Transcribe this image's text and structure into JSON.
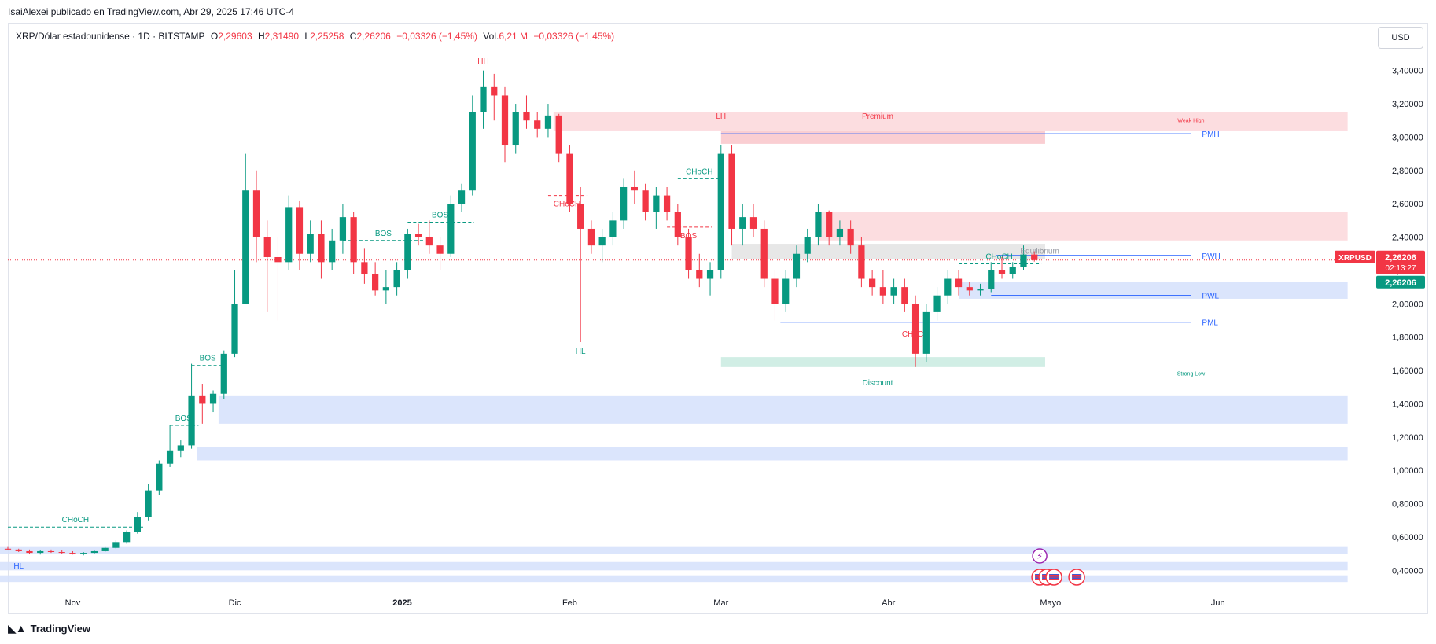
{
  "header": {
    "published_line": "IsaiAlexei publicado en TradingView.com, Abr 29, 2025 17:46 UTC-4"
  },
  "legend": {
    "symbol": "XRP/Dólar estadounidense · 1D · BITSTAMP",
    "o_label": "O",
    "o_value": "2,29603",
    "h_label": "H",
    "h_value": "2,31490",
    "l_label": "L",
    "l_value": "2,25258",
    "c_label": "C",
    "c_value": "2,26206",
    "change": "−0,03326 (−1,45%)",
    "vol_label": "Vol.",
    "vol_value": "6,21 M",
    "vol_change": "−0,03326 (−1,45%)"
  },
  "currency_button": "USD",
  "footer": {
    "brand": "TradingView",
    "logo_icon": "tradingview-logo-icon"
  },
  "colors": {
    "up": "#089981",
    "down": "#f23645",
    "blue": "#2962ff",
    "premium_zone": "#fbd7da",
    "discount_zone": "#c9ebe0",
    "blue_zone": "#d5e0fb",
    "equilibrium_zone": "#e3e3e3"
  },
  "price_badges": {
    "symbol_label": "XRPUSD",
    "last_price": "2,26206",
    "countdown": "02:13:27",
    "price_2": "2,26206"
  },
  "chart_data": {
    "type": "candlestick",
    "y_axis": {
      "range": [
        0.26,
        3.54
      ],
      "ticks": [
        "3,40000",
        "3,20000",
        "3,00000",
        "2,80000",
        "2,60000",
        "2,40000",
        "2,20000",
        "2,00000",
        "1,80000",
        "1,60000",
        "1,40000",
        "1,20000",
        "1,00000",
        "0,80000",
        "0,60000",
        "0,40000"
      ],
      "tick_values": [
        3.4,
        3.2,
        3.0,
        2.8,
        2.6,
        2.4,
        2.2,
        2.0,
        1.8,
        1.6,
        1.4,
        1.2,
        1.0,
        0.8,
        0.6,
        0.4
      ]
    },
    "x_axis": {
      "ticks": [
        "Nov",
        "Dic",
        "2025",
        "Feb",
        "Mar",
        "Abr",
        "Mayo",
        "Jun"
      ],
      "tick_dates": [
        "2024-11-01",
        "2024-12-01",
        "2025-01-01",
        "2025-02-01",
        "2025-03-01",
        "2025-04-01",
        "2025-05-01",
        "2025-06-01"
      ],
      "range": [
        "2024-10-20",
        "2025-06-30"
      ]
    },
    "candles": [
      {
        "d": "2024-10-20",
        "o": 0.53,
        "h": 0.54,
        "l": 0.52,
        "c": 0.525
      },
      {
        "d": "2024-10-22",
        "o": 0.525,
        "h": 0.53,
        "l": 0.51,
        "c": 0.515
      },
      {
        "d": "2024-10-24",
        "o": 0.515,
        "h": 0.525,
        "l": 0.5,
        "c": 0.505
      },
      {
        "d": "2024-10-26",
        "o": 0.505,
        "h": 0.52,
        "l": 0.495,
        "c": 0.515
      },
      {
        "d": "2024-10-28",
        "o": 0.515,
        "h": 0.525,
        "l": 0.505,
        "c": 0.51
      },
      {
        "d": "2024-10-30",
        "o": 0.51,
        "h": 0.52,
        "l": 0.5,
        "c": 0.505
      },
      {
        "d": "2024-11-01",
        "o": 0.505,
        "h": 0.515,
        "l": 0.495,
        "c": 0.5
      },
      {
        "d": "2024-11-03",
        "o": 0.5,
        "h": 0.51,
        "l": 0.49,
        "c": 0.505
      },
      {
        "d": "2024-11-05",
        "o": 0.505,
        "h": 0.52,
        "l": 0.5,
        "c": 0.515
      },
      {
        "d": "2024-11-07",
        "o": 0.515,
        "h": 0.54,
        "l": 0.51,
        "c": 0.535
      },
      {
        "d": "2024-11-09",
        "o": 0.535,
        "h": 0.58,
        "l": 0.53,
        "c": 0.57
      },
      {
        "d": "2024-11-11",
        "o": 0.57,
        "h": 0.64,
        "l": 0.56,
        "c": 0.63
      },
      {
        "d": "2024-11-13",
        "o": 0.63,
        "h": 0.75,
        "l": 0.62,
        "c": 0.72
      },
      {
        "d": "2024-11-15",
        "o": 0.72,
        "h": 0.92,
        "l": 0.7,
        "c": 0.88
      },
      {
        "d": "2024-11-17",
        "o": 0.88,
        "h": 1.06,
        "l": 0.85,
        "c": 1.04
      },
      {
        "d": "2024-11-19",
        "o": 1.04,
        "h": 1.27,
        "l": 1.02,
        "c": 1.12
      },
      {
        "d": "2024-11-21",
        "o": 1.12,
        "h": 1.18,
        "l": 1.08,
        "c": 1.15
      },
      {
        "d": "2024-11-23",
        "o": 1.15,
        "h": 1.64,
        "l": 1.13,
        "c": 1.45
      },
      {
        "d": "2024-11-25",
        "o": 1.45,
        "h": 1.52,
        "l": 1.28,
        "c": 1.4
      },
      {
        "d": "2024-11-27",
        "o": 1.4,
        "h": 1.48,
        "l": 1.35,
        "c": 1.46
      },
      {
        "d": "2024-11-29",
        "o": 1.46,
        "h": 1.72,
        "l": 1.43,
        "c": 1.7
      },
      {
        "d": "2024-12-01",
        "o": 1.7,
        "h": 2.2,
        "l": 1.68,
        "c": 2.0
      },
      {
        "d": "2024-12-03",
        "o": 2.0,
        "h": 2.9,
        "l": 2.0,
        "c": 2.68
      },
      {
        "d": "2024-12-05",
        "o": 2.68,
        "h": 2.8,
        "l": 2.25,
        "c": 2.4
      },
      {
        "d": "2024-12-07",
        "o": 2.4,
        "h": 2.5,
        "l": 1.95,
        "c": 2.28
      },
      {
        "d": "2024-12-09",
        "o": 2.28,
        "h": 2.4,
        "l": 1.9,
        "c": 2.25
      },
      {
        "d": "2024-12-11",
        "o": 2.25,
        "h": 2.65,
        "l": 2.2,
        "c": 2.58
      },
      {
        "d": "2024-12-13",
        "o": 2.58,
        "h": 2.62,
        "l": 2.2,
        "c": 2.3
      },
      {
        "d": "2024-12-15",
        "o": 2.3,
        "h": 2.5,
        "l": 2.25,
        "c": 2.42
      },
      {
        "d": "2024-12-17",
        "o": 2.42,
        "h": 2.5,
        "l": 2.15,
        "c": 2.25
      },
      {
        "d": "2024-12-19",
        "o": 2.25,
        "h": 2.45,
        "l": 2.2,
        "c": 2.38
      },
      {
        "d": "2024-12-21",
        "o": 2.38,
        "h": 2.6,
        "l": 2.3,
        "c": 2.52
      },
      {
        "d": "2024-12-23",
        "o": 2.52,
        "h": 2.55,
        "l": 2.18,
        "c": 2.25
      },
      {
        "d": "2024-12-25",
        "o": 2.25,
        "h": 2.33,
        "l": 2.12,
        "c": 2.18
      },
      {
        "d": "2024-12-27",
        "o": 2.18,
        "h": 2.25,
        "l": 2.05,
        "c": 2.08
      },
      {
        "d": "2024-12-29",
        "o": 2.08,
        "h": 2.2,
        "l": 2.0,
        "c": 2.1
      },
      {
        "d": "2024-12-31",
        "o": 2.1,
        "h": 2.25,
        "l": 2.05,
        "c": 2.2
      },
      {
        "d": "2025-01-02",
        "o": 2.2,
        "h": 2.45,
        "l": 2.15,
        "c": 2.42
      },
      {
        "d": "2025-01-04",
        "o": 2.42,
        "h": 2.48,
        "l": 2.35,
        "c": 2.4
      },
      {
        "d": "2025-01-06",
        "o": 2.4,
        "h": 2.5,
        "l": 2.3,
        "c": 2.35
      },
      {
        "d": "2025-01-08",
        "o": 2.35,
        "h": 2.4,
        "l": 2.2,
        "c": 2.3
      },
      {
        "d": "2025-01-10",
        "o": 2.3,
        "h": 2.65,
        "l": 2.28,
        "c": 2.6
      },
      {
        "d": "2025-01-12",
        "o": 2.6,
        "h": 2.72,
        "l": 2.55,
        "c": 2.68
      },
      {
        "d": "2025-01-14",
        "o": 2.68,
        "h": 3.25,
        "l": 2.65,
        "c": 3.15
      },
      {
        "d": "2025-01-16",
        "o": 3.15,
        "h": 3.4,
        "l": 3.05,
        "c": 3.3
      },
      {
        "d": "2025-01-18",
        "o": 3.3,
        "h": 3.38,
        "l": 3.1,
        "c": 3.25
      },
      {
        "d": "2025-01-20",
        "o": 3.25,
        "h": 3.3,
        "l": 2.85,
        "c": 2.95
      },
      {
        "d": "2025-01-22",
        "o": 2.95,
        "h": 3.2,
        "l": 2.9,
        "c": 3.15
      },
      {
        "d": "2025-01-24",
        "o": 3.15,
        "h": 3.25,
        "l": 3.05,
        "c": 3.1
      },
      {
        "d": "2025-01-26",
        "o": 3.1,
        "h": 3.15,
        "l": 3.0,
        "c": 3.05
      },
      {
        "d": "2025-01-28",
        "o": 3.05,
        "h": 3.2,
        "l": 3.0,
        "c": 3.13
      },
      {
        "d": "2025-01-30",
        "o": 3.13,
        "h": 3.14,
        "l": 2.85,
        "c": 2.9
      },
      {
        "d": "2025-02-01",
        "o": 2.9,
        "h": 2.95,
        "l": 2.55,
        "c": 2.6
      },
      {
        "d": "2025-02-03",
        "o": 2.6,
        "h": 2.7,
        "l": 1.77,
        "c": 2.45
      },
      {
        "d": "2025-02-05",
        "o": 2.45,
        "h": 2.5,
        "l": 2.3,
        "c": 2.35
      },
      {
        "d": "2025-02-07",
        "o": 2.35,
        "h": 2.45,
        "l": 2.25,
        "c": 2.4
      },
      {
        "d": "2025-02-09",
        "o": 2.4,
        "h": 2.55,
        "l": 2.35,
        "c": 2.5
      },
      {
        "d": "2025-02-11",
        "o": 2.5,
        "h": 2.75,
        "l": 2.45,
        "c": 2.7
      },
      {
        "d": "2025-02-13",
        "o": 2.7,
        "h": 2.8,
        "l": 2.6,
        "c": 2.68
      },
      {
        "d": "2025-02-15",
        "o": 2.68,
        "h": 2.72,
        "l": 2.5,
        "c": 2.55
      },
      {
        "d": "2025-02-17",
        "o": 2.55,
        "h": 2.7,
        "l": 2.45,
        "c": 2.65
      },
      {
        "d": "2025-02-19",
        "o": 2.65,
        "h": 2.7,
        "l": 2.5,
        "c": 2.55
      },
      {
        "d": "2025-02-21",
        "o": 2.55,
        "h": 2.6,
        "l": 2.35,
        "c": 2.4
      },
      {
        "d": "2025-02-23",
        "o": 2.4,
        "h": 2.45,
        "l": 2.15,
        "c": 2.2
      },
      {
        "d": "2025-02-25",
        "o": 2.2,
        "h": 2.3,
        "l": 2.1,
        "c": 2.15
      },
      {
        "d": "2025-02-27",
        "o": 2.15,
        "h": 2.25,
        "l": 2.05,
        "c": 2.2
      },
      {
        "d": "2025-03-01",
        "o": 2.2,
        "h": 2.95,
        "l": 2.15,
        "c": 2.9
      },
      {
        "d": "2025-03-03",
        "o": 2.9,
        "h": 2.95,
        "l": 2.35,
        "c": 2.45
      },
      {
        "d": "2025-03-05",
        "o": 2.45,
        "h": 2.6,
        "l": 2.35,
        "c": 2.52
      },
      {
        "d": "2025-03-07",
        "o": 2.52,
        "h": 2.6,
        "l": 2.4,
        "c": 2.45
      },
      {
        "d": "2025-03-09",
        "o": 2.45,
        "h": 2.5,
        "l": 2.1,
        "c": 2.15
      },
      {
        "d": "2025-03-11",
        "o": 2.15,
        "h": 2.2,
        "l": 1.9,
        "c": 2.0
      },
      {
        "d": "2025-03-13",
        "o": 2.0,
        "h": 2.2,
        "l": 1.95,
        "c": 2.15
      },
      {
        "d": "2025-03-15",
        "o": 2.15,
        "h": 2.35,
        "l": 2.1,
        "c": 2.3
      },
      {
        "d": "2025-03-17",
        "o": 2.3,
        "h": 2.45,
        "l": 2.25,
        "c": 2.4
      },
      {
        "d": "2025-03-19",
        "o": 2.4,
        "h": 2.6,
        "l": 2.35,
        "c": 2.55
      },
      {
        "d": "2025-03-21",
        "o": 2.55,
        "h": 2.56,
        "l": 2.35,
        "c": 2.4
      },
      {
        "d": "2025-03-23",
        "o": 2.4,
        "h": 2.5,
        "l": 2.35,
        "c": 2.45
      },
      {
        "d": "2025-03-25",
        "o": 2.45,
        "h": 2.5,
        "l": 2.3,
        "c": 2.35
      },
      {
        "d": "2025-03-27",
        "o": 2.35,
        "h": 2.4,
        "l": 2.1,
        "c": 2.15
      },
      {
        "d": "2025-03-29",
        "o": 2.15,
        "h": 2.2,
        "l": 2.05,
        "c": 2.1
      },
      {
        "d": "2025-03-31",
        "o": 2.1,
        "h": 2.2,
        "l": 2.0,
        "c": 2.05
      },
      {
        "d": "2025-04-02",
        "o": 2.05,
        "h": 2.15,
        "l": 2.0,
        "c": 2.1
      },
      {
        "d": "2025-04-04",
        "o": 2.1,
        "h": 2.15,
        "l": 1.95,
        "c": 2.0
      },
      {
        "d": "2025-04-06",
        "o": 2.0,
        "h": 2.05,
        "l": 1.62,
        "c": 1.7
      },
      {
        "d": "2025-04-08",
        "o": 1.7,
        "h": 2.0,
        "l": 1.65,
        "c": 1.95
      },
      {
        "d": "2025-04-10",
        "o": 1.95,
        "h": 2.1,
        "l": 1.9,
        "c": 2.05
      },
      {
        "d": "2025-04-12",
        "o": 2.05,
        "h": 2.2,
        "l": 2.0,
        "c": 2.15
      },
      {
        "d": "2025-04-14",
        "o": 2.15,
        "h": 2.2,
        "l": 2.05,
        "c": 2.1
      },
      {
        "d": "2025-04-16",
        "o": 2.1,
        "h": 2.13,
        "l": 2.05,
        "c": 2.08
      },
      {
        "d": "2025-04-18",
        "o": 2.08,
        "h": 2.12,
        "l": 2.05,
        "c": 2.09
      },
      {
        "d": "2025-04-20",
        "o": 2.09,
        "h": 2.25,
        "l": 2.07,
        "c": 2.2
      },
      {
        "d": "2025-04-22",
        "o": 2.2,
        "h": 2.28,
        "l": 2.15,
        "c": 2.18
      },
      {
        "d": "2025-04-24",
        "o": 2.18,
        "h": 2.25,
        "l": 2.15,
        "c": 2.22
      },
      {
        "d": "2025-04-26",
        "o": 2.22,
        "h": 2.35,
        "l": 2.2,
        "c": 2.296
      },
      {
        "d": "2025-04-28",
        "o": 2.296,
        "h": 2.315,
        "l": 2.253,
        "c": 2.262
      }
    ],
    "zones": [
      {
        "name": "premium-zone-top",
        "color": "#fbd7da",
        "y0": 3.04,
        "y1": 3.15,
        "x0": "2025-01-29",
        "x1": "2025-06-25"
      },
      {
        "name": "premium-zone-mid",
        "color": "#f9c5ca",
        "y0": 2.96,
        "y1": 3.04,
        "x0": "2025-03-01",
        "x1": "2025-04-30"
      },
      {
        "name": "premium-zone-lower",
        "color": "#fbd7da",
        "y0": 2.38,
        "y1": 2.55,
        "x0": "2025-03-19",
        "x1": "2025-06-25"
      },
      {
        "name": "equilibrium-zone",
        "color": "#e3e3e3",
        "y0": 2.27,
        "y1": 2.36,
        "x0": "2025-03-03",
        "x1": "2025-04-30"
      },
      {
        "name": "blue-zone-pwl",
        "color": "#d5e0fb",
        "y0": 2.03,
        "y1": 2.13,
        "x0": "2025-04-14",
        "x1": "2025-06-25"
      },
      {
        "name": "discount-zone",
        "color": "#c9ebe0",
        "y0": 1.62,
        "y1": 1.68,
        "x0": "2025-03-01",
        "x1": "2025-04-30"
      },
      {
        "name": "blue-zone-1",
        "color": "#d5e0fb",
        "y0": 1.28,
        "y1": 1.45,
        "x0": "2024-11-28",
        "x1": "2025-06-25"
      },
      {
        "name": "blue-zone-2",
        "color": "#d5e0fb",
        "y0": 1.06,
        "y1": 1.14,
        "x0": "2024-11-24",
        "x1": "2025-06-25"
      },
      {
        "name": "blue-zone-3",
        "color": "#d5e0fb",
        "y0": 0.5,
        "y1": 0.54,
        "x0": "2024-10-18",
        "x1": "2025-06-25"
      },
      {
        "name": "blue-zone-4",
        "color": "#d5e0fb",
        "y0": 0.4,
        "y1": 0.45,
        "x0": "2024-10-18",
        "x1": "2025-06-25"
      },
      {
        "name": "blue-zone-5",
        "color": "#d5e0fb",
        "y0": 0.33,
        "y1": 0.37,
        "x0": "2024-10-18",
        "x1": "2025-06-25"
      }
    ],
    "levels": [
      {
        "label": "PMH",
        "y": 3.02,
        "x0": "2025-03-01",
        "x1": "2025-05-27",
        "color": "#2962ff"
      },
      {
        "label": "PWH",
        "y": 2.29,
        "x0": "2025-04-21",
        "x1": "2025-05-27",
        "color": "#2962ff"
      },
      {
        "label": "PWL",
        "y": 2.05,
        "x0": "2025-04-20",
        "x1": "2025-05-27",
        "color": "#2962ff"
      },
      {
        "label": "PML",
        "y": 1.89,
        "x0": "2025-03-12",
        "x1": "2025-05-27",
        "color": "#2962ff"
      }
    ],
    "structure": [
      {
        "label": "CHoCH",
        "color": "#089981",
        "dash": true,
        "y": 0.66,
        "x0": "2024-10-20",
        "x1": "2024-11-14"
      },
      {
        "label": "BOS",
        "color": "#089981",
        "dash": true,
        "y": 1.27,
        "x0": "2024-11-19",
        "x1": "2024-11-24"
      },
      {
        "label": "BOS",
        "color": "#089981",
        "dash": true,
        "y": 1.63,
        "x0": "2024-11-23",
        "x1": "2024-11-29"
      },
      {
        "label": "BOS",
        "color": "#089981",
        "dash": true,
        "y": 2.38,
        "x0": "2024-12-21",
        "x1": "2025-01-05"
      },
      {
        "label": "BOS",
        "color": "#089981",
        "dash": true,
        "y": 2.49,
        "x0": "2025-01-02",
        "x1": "2025-01-14"
      },
      {
        "label": "CHoCH",
        "color": "#f23645",
        "dash": true,
        "y": 2.65,
        "x0": "2025-01-28",
        "x1": "2025-02-04"
      },
      {
        "label": "BOS",
        "color": "#f23645",
        "dash": true,
        "y": 2.46,
        "x0": "2025-02-19",
        "x1": "2025-02-27"
      },
      {
        "label": "CHoCH",
        "color": "#089981",
        "dash": true,
        "y": 2.75,
        "x0": "2025-02-21",
        "x1": "2025-03-01"
      },
      {
        "label": "CHoCH",
        "color": "#f23645",
        "dash": false,
        "y": 1.87,
        "x0": "2025-04-06",
        "x1": "2025-04-06"
      },
      {
        "label": "CHoCH",
        "color": "#089981",
        "dash": true,
        "y": 2.24,
        "x0": "2025-04-14",
        "x1": "2025-04-29"
      }
    ],
    "labels": [
      {
        "text": "HH",
        "color": "#f23645",
        "x": "2025-01-16",
        "y": 3.44
      },
      {
        "text": "HL",
        "color": "#089981",
        "x": "2025-02-03",
        "y": 1.7
      },
      {
        "text": "LH",
        "color": "#f23645",
        "x": "2025-03-01",
        "y": 3.11
      },
      {
        "text": "Premium",
        "color": "#f23645",
        "x": "2025-03-30",
        "y": 3.11
      },
      {
        "text": "Weak High",
        "color": "#f23645",
        "x": "2025-05-27",
        "y": 3.09,
        "small": true
      },
      {
        "text": "Equilibrium",
        "color": "#9598a1",
        "x": "2025-04-29",
        "y": 2.3
      },
      {
        "text": "Discount",
        "color": "#089981",
        "x": "2025-03-30",
        "y": 1.51
      },
      {
        "text": "Strong Low",
        "color": "#089981",
        "x": "2025-05-27",
        "y": 1.57,
        "small": true
      },
      {
        "text": "HL",
        "color": "#2962ff",
        "x": "2024-10-22",
        "y": 0.41
      }
    ],
    "last_price": 2.26206,
    "event_icons": [
      "lightning-event-icon",
      "us-flag-event-icon",
      "us-flag-event-icon",
      "us-flag-event-icon",
      "us-flag-event-icon"
    ]
  }
}
